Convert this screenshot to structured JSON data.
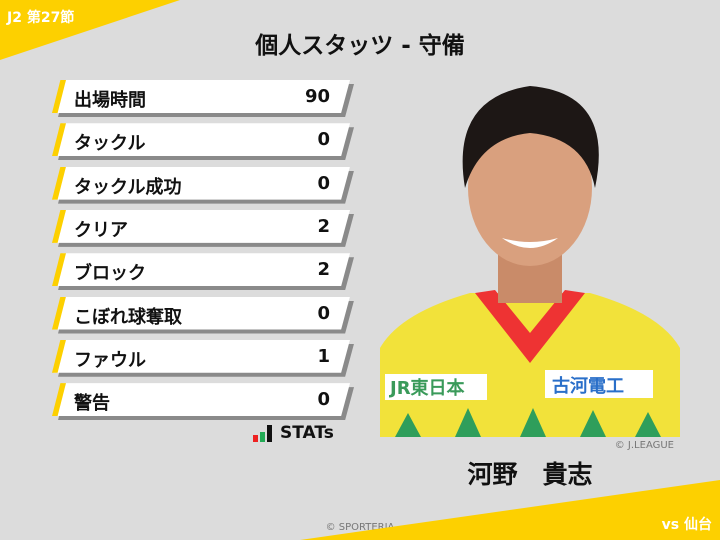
{
  "header": {
    "round": "J2 第27節",
    "title": "個人スタッツ - 守備",
    "opponent": "vs 仙台"
  },
  "stats": [
    {
      "label": "出場時間",
      "value": "90"
    },
    {
      "label": "タックル",
      "value": "0"
    },
    {
      "label": "タックル成功",
      "value": "0"
    },
    {
      "label": "クリア",
      "value": "2"
    },
    {
      "label": "ブロック",
      "value": "2"
    },
    {
      "label": "こぼれ球奪取",
      "value": "0"
    },
    {
      "label": "ファウル",
      "value": "1"
    },
    {
      "label": "警告",
      "value": "0"
    }
  ],
  "logo": {
    "text": "STATs"
  },
  "player": {
    "name": "河野　貴志",
    "photo_credit": "© J.LEAGUE",
    "sponsors": [
      "JR東日本",
      "古河電工"
    ]
  },
  "footer": {
    "copyright": "© SPORTERIA"
  },
  "colors": {
    "accent": "#fdd000",
    "background": "#dcdcdc",
    "jersey": "#f2e23a"
  }
}
